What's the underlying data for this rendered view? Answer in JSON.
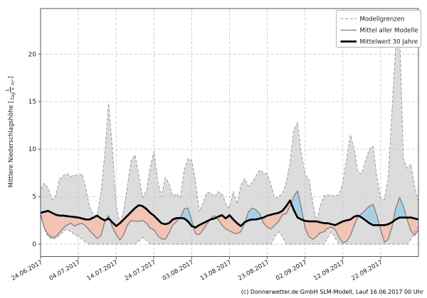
{
  "figure": {
    "footer": "(c) Donnerwetter.de GmbH SLM-Modell, Lauf 16.06.2017 00 Uhr",
    "ylabel_prefix": "Mittlere Niederschlagshöhe [",
    "ylabel_suffix": "]",
    "ylabel_frac_num": "L",
    "ylabel_frac_den": "Tag × m²"
  },
  "chart_data": {
    "type": "area",
    "title": "",
    "ylabel": "Mittlere Niederschlagshöhe [L/(Tag × m²)]",
    "xlabel": "",
    "grid": true,
    "legend_position": "upper right",
    "x_tick_labels": [
      "24.06.2017",
      "04.07.2017",
      "14.07.2017",
      "24.07.2017",
      "03.08.2017",
      "13.08.2017",
      "23.08.2017",
      "02.09.2017",
      "12.09.2017",
      "22.09.2017"
    ],
    "x_tick_days": [
      0,
      10,
      20,
      30,
      40,
      50,
      60,
      70,
      80,
      90
    ],
    "y_ticks": [
      0,
      5,
      10,
      15,
      20
    ],
    "x_range_days": [
      0,
      100
    ],
    "y_range": [
      -1.3,
      24.8
    ],
    "legend": [
      {
        "label": "Modellgrenzen",
        "style": "dashed-gray"
      },
      {
        "label": "Mittel aller Modelle",
        "style": "solid-gray"
      },
      {
        "label": "Mittelwert 30 Jahre",
        "style": "thick-black"
      }
    ],
    "colors": {
      "band_fill": "#dcdcdc",
      "band_edge": "#999999",
      "mean_line": "#7f7f7f",
      "clim_line": "#000000",
      "below_normal_fill": "#f2c4b6",
      "above_normal_fill": "#a9cfe5",
      "grid": "#c9c9c9",
      "spine": "#555555",
      "tick_text": "#1a1a1a",
      "legend_border": "#b0b0b0"
    },
    "series": [
      {
        "name": "model_max",
        "label": "Modellgrenzen (oben)",
        "values": [
          5.8,
          6.4,
          5.9,
          4.7,
          5.1,
          6.8,
          7.2,
          7.4,
          7.1,
          7.3,
          7.2,
          7.4,
          5.8,
          3.9,
          3.1,
          3.0,
          5.5,
          9.5,
          14.8,
          10.0,
          4.2,
          2.1,
          3.6,
          6.2,
          8.8,
          9.4,
          7.2,
          4.9,
          5.6,
          8.0,
          9.8,
          6.6,
          5.0,
          7.0,
          6.4,
          5.0,
          5.3,
          4.9,
          7.8,
          9.0,
          8.8,
          6.6,
          3.4,
          4.4,
          5.4,
          5.4,
          5.0,
          5.5,
          5.3,
          4.3,
          3.8,
          5.5,
          4.2,
          6.2,
          6.9,
          6.1,
          6.5,
          7.2,
          7.8,
          7.5,
          7.4,
          6.2,
          4.8,
          5.0,
          5.3,
          6.5,
          8.5,
          12.0,
          12.8,
          9.5,
          7.3,
          6.8,
          4.5,
          2.3,
          4.0,
          5.1,
          5.2,
          5.1,
          5.1,
          5.2,
          6.5,
          9.0,
          11.5,
          10.0,
          7.6,
          7.4,
          8.8,
          10.0,
          10.3,
          7.0,
          4.8,
          4.7,
          7.0,
          14.0,
          21.0,
          22.3,
          9.0,
          8.0,
          8.4,
          6.0,
          4.5
        ]
      },
      {
        "name": "model_min",
        "label": "Modellgrenzen (unten)",
        "values": [
          3.0,
          1.6,
          0.8,
          0.55,
          0.6,
          0.9,
          1.3,
          1.6,
          1.3,
          1.0,
          0.8,
          0.5,
          0.2,
          0,
          0,
          0,
          0,
          0,
          0,
          0,
          0,
          0,
          0,
          0,
          0,
          0,
          0.3,
          0.7,
          0.4,
          0,
          0,
          0,
          0,
          0,
          0,
          0,
          0,
          0,
          0,
          0,
          0,
          0,
          0,
          0,
          0,
          0,
          0,
          0,
          0,
          0,
          0,
          0,
          0,
          0,
          0,
          0,
          0,
          0,
          0,
          0,
          0,
          0,
          0.8,
          1.3,
          0.8,
          0,
          0,
          0,
          0,
          0,
          0,
          0,
          0,
          0,
          0,
          0,
          0.7,
          1.3,
          0.6,
          0,
          0,
          0,
          0,
          0,
          0,
          0,
          0,
          0,
          0,
          0,
          0,
          0,
          0,
          0,
          0,
          0,
          0,
          0,
          0.5,
          1.2,
          1.9
        ]
      },
      {
        "name": "model_mean",
        "label": "Mittel aller Modelle",
        "values": [
          3.2,
          1.7,
          1.0,
          0.7,
          0.8,
          1.2,
          1.7,
          2.0,
          2.2,
          1.9,
          2.1,
          2.2,
          1.9,
          1.4,
          1.0,
          0.6,
          0.9,
          2.4,
          3.0,
          1.8,
          1.0,
          0.45,
          1.0,
          2.0,
          2.5,
          2.4,
          2.4,
          2.5,
          2.2,
          1.7,
          1.5,
          0.9,
          0.55,
          0.5,
          1.2,
          2.0,
          2.4,
          2.8,
          3.7,
          3.8,
          2.5,
          1.1,
          1.0,
          1.5,
          2.1,
          2.7,
          3.0,
          2.6,
          2.0,
          1.6,
          1.4,
          1.2,
          1.1,
          1.3,
          2.2,
          3.4,
          3.8,
          3.6,
          3.2,
          2.2,
          1.8,
          1.6,
          2.0,
          2.4,
          3.1,
          3.2,
          4.0,
          5.0,
          5.6,
          3.8,
          1.7,
          0.8,
          0.5,
          0.8,
          1.2,
          1.3,
          1.7,
          1.8,
          1.5,
          0.7,
          0.15,
          0.3,
          0.9,
          2.0,
          2.9,
          3.2,
          3.6,
          4.0,
          4.2,
          3.0,
          1.5,
          0.2,
          0.5,
          1.8,
          3.8,
          4.9,
          4.0,
          2.6,
          1.4,
          0.9,
          1.5
        ]
      },
      {
        "name": "climatology_30yr",
        "label": "Mittelwert 30 Jahre",
        "values": [
          3.3,
          3.4,
          3.5,
          3.3,
          3.1,
          3.0,
          3.0,
          2.95,
          2.9,
          2.85,
          2.8,
          2.7,
          2.6,
          2.6,
          2.8,
          3.0,
          2.7,
          2.5,
          2.7,
          2.3,
          1.9,
          2.2,
          2.6,
          3.0,
          3.4,
          3.8,
          4.1,
          4.0,
          3.7,
          3.3,
          3.0,
          2.6,
          2.2,
          2.1,
          2.2,
          2.6,
          2.75,
          2.75,
          2.7,
          2.4,
          1.9,
          1.75,
          2.0,
          2.2,
          2.4,
          2.6,
          2.7,
          2.9,
          3.05,
          2.7,
          3.05,
          2.6,
          2.2,
          1.9,
          2.3,
          2.5,
          2.6,
          2.6,
          2.7,
          2.8,
          3.0,
          3.1,
          3.2,
          3.3,
          3.5,
          4.0,
          4.6,
          3.6,
          2.8,
          2.6,
          2.45,
          2.4,
          2.4,
          2.4,
          2.3,
          2.2,
          2.2,
          2.1,
          2.0,
          2.2,
          2.4,
          2.5,
          2.6,
          2.9,
          3.0,
          2.8,
          2.5,
          2.2,
          2.0,
          2.0,
          2.0,
          2.0,
          2.1,
          2.3,
          2.6,
          2.8,
          2.8,
          2.8,
          2.8,
          2.7,
          2.6
        ]
      }
    ]
  }
}
